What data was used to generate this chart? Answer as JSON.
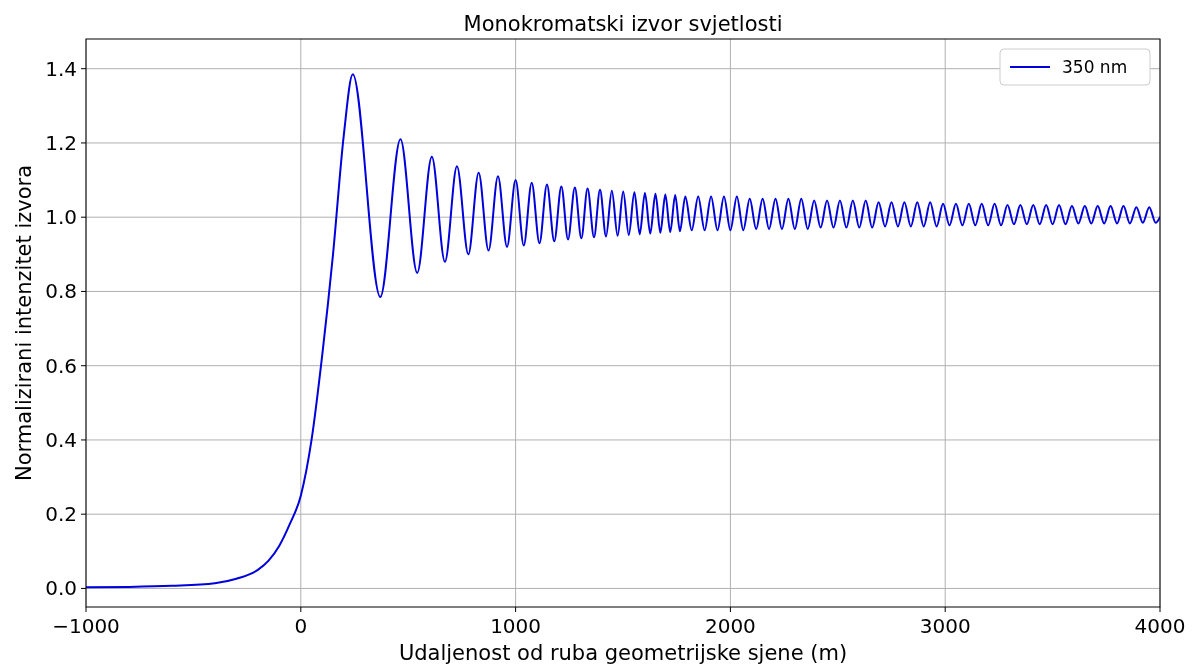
{
  "chart_data": {
    "type": "line",
    "title": "Monokromatski izvor svjetlosti",
    "xlabel": "Udaljenost od ruba geometrijske sjene (m)",
    "ylabel": "Normalizirani intenzitet izvora",
    "xlim": [
      -1000,
      4000
    ],
    "xticks": [
      {
        "value": -1000,
        "label": "−1000"
      },
      0,
      1000,
      2000,
      3000,
      4000
    ],
    "ylim": [
      -0.05,
      1.48
    ],
    "yticks": [
      {
        "value": 0,
        "label": "0.0"
      },
      {
        "value": 0.2,
        "label": "0.2"
      },
      {
        "value": 0.4,
        "label": "0.4"
      },
      {
        "value": 0.6,
        "label": "0.6"
      },
      {
        "value": 0.8,
        "label": "0.8"
      },
      {
        "value": 1,
        "label": "1.0"
      },
      {
        "value": 1.2,
        "label": "1.2"
      },
      {
        "value": 1.4,
        "label": "1.4"
      }
    ],
    "grid": true,
    "legend": "top right",
    "line_style": "solid",
    "marker": "none",
    "series": [
      {
        "name": "350 nm",
        "color": "#0000dd",
        "x": [
          -1000,
          -800,
          -600,
          -400,
          -300,
          -200,
          -150,
          -100,
          -50,
          0,
          50,
          100,
          150,
          200,
          242,
          370,
          464,
          542,
          610,
          671,
          727,
          780,
          828,
          874,
          918,
          960,
          1000,
          1038,
          1075,
          1111,
          1146,
          1180,
          1213,
          1244,
          1276,
          1306,
          1335,
          1365,
          1393,
          1421,
          1448,
          1475,
          1501,
          1527,
          1553,
          1578,
          1602,
          1627,
          1651,
          1674,
          1697,
          1720,
          1743,
          1765,
          1790,
          1820,
          1850,
          1880,
          1910,
          1940,
          1970,
          2000,
          2030,
          2060,
          2090,
          2120,
          2150,
          2180,
          2210,
          2240,
          2270,
          2300,
          2330,
          2360,
          2390,
          2420,
          2450,
          2480,
          2510,
          2540,
          2570,
          2600,
          2630,
          2660,
          2690,
          2720,
          2750,
          2780,
          2810,
          2840,
          2870,
          2900,
          2930,
          2960,
          2990,
          3020,
          3050,
          3080,
          3110,
          3140,
          3170,
          3200,
          3230,
          3260,
          3290,
          3320,
          3350,
          3380,
          3410,
          3440,
          3470,
          3500,
          3530,
          3560,
          3590,
          3620,
          3650,
          3680,
          3710,
          3740,
          3770,
          3800,
          3830,
          3860,
          3890,
          3920,
          3950,
          3980,
          4000
        ],
        "values": [
          0.003,
          0.004,
          0.007,
          0.014,
          0.026,
          0.05,
          0.075,
          0.115,
          0.175,
          0.25,
          0.4,
          0.63,
          0.9,
          1.22,
          1.385,
          0.785,
          1.21,
          0.85,
          1.163,
          0.88,
          1.137,
          0.9,
          1.12,
          0.91,
          1.11,
          0.92,
          1.1,
          0.924,
          1.093,
          0.93,
          1.088,
          0.935,
          1.083,
          0.94,
          1.08,
          0.943,
          1.077,
          0.946,
          1.074,
          0.948,
          1.071,
          0.95,
          1.069,
          0.952,
          1.067,
          0.954,
          1.065,
          0.956,
          1.063,
          0.958,
          1.061,
          0.96,
          1.06,
          0.962,
          1.056,
          0.965,
          1.056,
          0.965,
          1.056,
          0.965,
          1.056,
          0.965,
          1.056,
          0.965,
          1.05,
          0.968,
          1.05,
          0.968,
          1.05,
          0.968,
          1.05,
          0.968,
          1.05,
          0.968,
          1.045,
          0.972,
          1.045,
          0.972,
          1.045,
          0.972,
          1.045,
          0.972,
          1.045,
          0.972,
          1.04,
          0.975,
          1.04,
          0.975,
          1.04,
          0.975,
          1.04,
          0.975,
          1.04,
          0.975,
          1.036,
          0.978,
          1.036,
          0.978,
          1.036,
          0.978,
          1.036,
          0.978,
          1.036,
          0.978,
          1.033,
          0.981,
          1.033,
          0.981,
          1.033,
          0.981,
          1.033,
          0.981,
          1.033,
          0.981,
          1.03,
          0.983,
          1.03,
          0.983,
          1.03,
          0.983,
          1.03,
          0.983,
          1.03,
          0.983,
          1.027,
          0.985,
          1.027,
          0.985,
          1.0
        ]
      }
    ]
  }
}
